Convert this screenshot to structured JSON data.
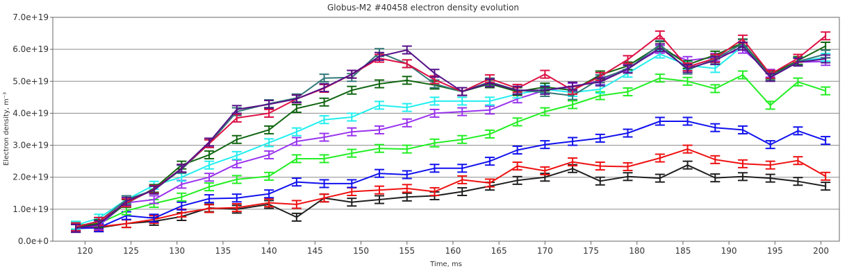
{
  "chart_data": {
    "type": "line",
    "title": "Globus-M2 #40458 electron density evolution",
    "xlabel": "Time, ms",
    "ylabel": "Electron density, m⁻³",
    "xlim": [
      116.5,
      202
    ],
    "ylim": [
      0,
      7e+19
    ],
    "grid": "horizontal",
    "legend": "none",
    "x_ticks": [
      120,
      125,
      130,
      135,
      140,
      145,
      150,
      155,
      160,
      165,
      170,
      175,
      180,
      185,
      190,
      195,
      200
    ],
    "y_ticks": [
      {
        "value": 0,
        "label": "0.0e+0"
      },
      {
        "value": 1e+19,
        "label": "1.0e+19"
      },
      {
        "value": 2e+19,
        "label": "2.0e+19"
      },
      {
        "value": 3e+19,
        "label": "3.0e+19"
      },
      {
        "value": 4e+19,
        "label": "4.0e+19"
      },
      {
        "value": 5e+19,
        "label": "5.0e+19"
      },
      {
        "value": 6e+19,
        "label": "6.0e+19"
      },
      {
        "value": 7e+19,
        "label": "7.0e+19"
      }
    ],
    "x": [
      119,
      121.5,
      124.5,
      127.5,
      130.5,
      133.5,
      136.5,
      140,
      143,
      146,
      149,
      152,
      155,
      158,
      161,
      164,
      167,
      170,
      173,
      176,
      179,
      182.5,
      185.5,
      188.5,
      191.5,
      194.5,
      197.5,
      200.5
    ],
    "error": 1.2e+18,
    "series": [
      {
        "color": "#202020",
        "values": [
          0.4,
          0.42,
          0.55,
          0.62,
          0.77,
          1.04,
          1.0,
          1.15,
          0.75,
          1.35,
          1.22,
          1.3,
          1.38,
          1.42,
          1.55,
          1.72,
          1.9,
          2.0,
          2.27,
          1.88,
          2.02,
          1.97,
          2.38,
          1.98,
          2.02,
          1.97,
          1.87,
          1.72
        ]
      },
      {
        "color": "#ee1111",
        "values": [
          0.42,
          0.45,
          0.55,
          0.68,
          0.88,
          1.02,
          1.05,
          1.2,
          1.15,
          1.35,
          1.55,
          1.6,
          1.65,
          1.55,
          1.92,
          1.82,
          2.35,
          2.2,
          2.48,
          2.35,
          2.33,
          2.6,
          2.88,
          2.55,
          2.42,
          2.38,
          2.52,
          2.03
        ]
      },
      {
        "color": "#1111ee",
        "values": [
          0.4,
          0.42,
          0.8,
          0.72,
          1.1,
          1.33,
          1.35,
          1.48,
          1.85,
          1.8,
          1.8,
          2.12,
          2.08,
          2.28,
          2.28,
          2.5,
          2.85,
          3.02,
          3.12,
          3.22,
          3.38,
          3.75,
          3.75,
          3.55,
          3.48,
          3.02,
          3.45,
          3.15
        ]
      },
      {
        "color": "#22ee22",
        "values": [
          0.5,
          0.55,
          0.95,
          1.18,
          1.38,
          1.7,
          1.93,
          2.03,
          2.58,
          2.58,
          2.75,
          2.9,
          2.88,
          3.07,
          3.18,
          3.35,
          3.73,
          4.05,
          4.27,
          4.55,
          4.67,
          5.1,
          5.0,
          4.77,
          5.2,
          4.25,
          4.98,
          4.7
        ]
      },
      {
        "color": "#9933ee",
        "values": [
          0.45,
          0.48,
          1.2,
          1.3,
          1.78,
          2.0,
          2.42,
          2.7,
          3.12,
          3.25,
          3.42,
          3.48,
          3.7,
          4.0,
          4.05,
          4.1,
          4.45,
          4.72,
          4.82,
          5.02,
          5.42,
          6.0,
          5.65,
          5.75,
          6.0,
          5.25,
          5.6,
          5.62
        ]
      },
      {
        "color": "#22eeee",
        "values": [
          0.5,
          0.72,
          1.3,
          1.75,
          2.0,
          2.38,
          2.68,
          3.08,
          3.42,
          3.8,
          3.88,
          4.25,
          4.18,
          4.38,
          4.38,
          4.38,
          4.6,
          4.75,
          4.65,
          4.75,
          5.25,
          5.85,
          5.5,
          5.4,
          6.1,
          5.2,
          5.62,
          5.75
        ]
      },
      {
        "color": "#116611",
        "values": [
          0.45,
          0.55,
          1.18,
          1.65,
          2.38,
          2.7,
          3.18,
          3.48,
          4.15,
          4.35,
          4.72,
          4.92,
          5.03,
          4.88,
          4.68,
          4.92,
          4.68,
          4.82,
          4.72,
          5.2,
          5.48,
          6.12,
          5.52,
          5.82,
          6.2,
          5.2,
          5.65,
          6.1
        ]
      },
      {
        "color": "#337777",
        "values": [
          0.45,
          0.62,
          1.3,
          1.6,
          2.25,
          3.05,
          4.05,
          4.3,
          4.48,
          5.1,
          5.12,
          5.9,
          5.55,
          4.92,
          4.68,
          4.98,
          4.72,
          4.65,
          4.55,
          5.08,
          5.38,
          6.15,
          5.35,
          5.7,
          6.18,
          5.15,
          5.62,
          5.85
        ]
      },
      {
        "color": "#dd1144",
        "values": [
          0.45,
          0.62,
          1.2,
          1.62,
          2.28,
          3.05,
          3.85,
          4.0,
          4.45,
          4.78,
          5.22,
          5.72,
          5.55,
          5.05,
          4.68,
          5.08,
          4.78,
          5.22,
          4.72,
          5.15,
          5.68,
          6.45,
          5.45,
          5.72,
          6.32,
          5.22,
          5.72,
          6.42
        ]
      },
      {
        "color": "#551188",
        "values": [
          0.4,
          0.52,
          1.25,
          1.6,
          2.28,
          3.1,
          4.12,
          4.28,
          4.45,
          4.8,
          5.22,
          5.78,
          5.98,
          5.25,
          4.68,
          4.95,
          4.72,
          4.72,
          4.85,
          4.98,
          5.38,
          6.05,
          5.4,
          5.65,
          6.1,
          5.12,
          5.6,
          5.7
        ]
      }
    ]
  }
}
